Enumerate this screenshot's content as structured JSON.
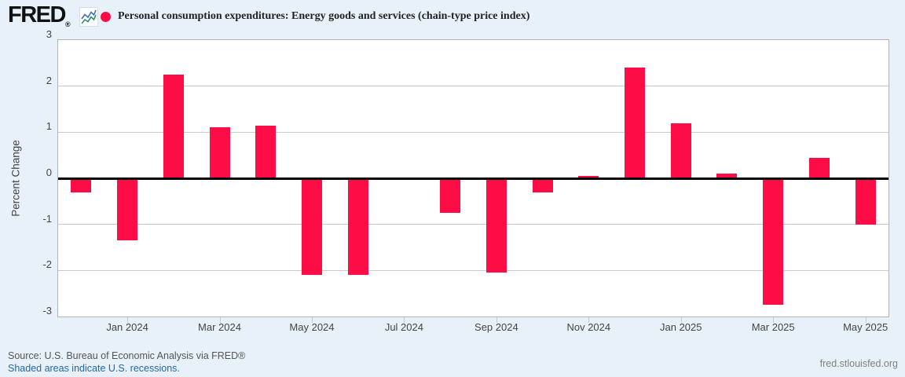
{
  "header": {
    "logo_text": "FRED",
    "logo_registered": "®",
    "sparkline_icon": "line-chart-sparkline",
    "series_title": "Personal consumption expenditures: Energy goods and services (chain-type price index)"
  },
  "footer": {
    "source_line": "Source: U.S. Bureau of Economic Analysis via FRED®",
    "recessions_note": "Shaded areas indicate U.S. recessions.",
    "site_link": "fred.stlouisfed.org"
  },
  "colors": {
    "series": "#fc0d45",
    "background": "#e8f1fa",
    "link": "#2268a8",
    "zero_line": "#000000",
    "gridline": "#c9c9c9"
  },
  "chart_data": {
    "type": "bar",
    "title": "Personal consumption expenditures: Energy goods and services (chain-type price index)",
    "xlabel": "",
    "ylabel": "Percent Change",
    "ylim": [
      -3,
      3
    ],
    "yticks": [
      3,
      2,
      1,
      0,
      -1,
      -2,
      -3
    ],
    "grid": true,
    "legend_position": "top",
    "categories": [
      "Dec 2023",
      "Jan 2024",
      "Feb 2024",
      "Mar 2024",
      "Apr 2024",
      "May 2024",
      "Jun 2024",
      "Jul 2024",
      "Aug 2024",
      "Sep 2024",
      "Oct 2024",
      "Nov 2024",
      "Dec 2024",
      "Jan 2025",
      "Feb 2025",
      "Mar 2025",
      "Apr 2025",
      "May 2025"
    ],
    "values": [
      -0.3,
      -1.35,
      2.25,
      1.1,
      1.15,
      -2.1,
      -2.1,
      0.0,
      -0.75,
      -2.05,
      -0.3,
      0.05,
      2.4,
      1.2,
      0.1,
      -2.75,
      0.45,
      -1.0
    ],
    "xticks": [
      [
        1,
        "Jan 2024"
      ],
      [
        3,
        "Mar 2024"
      ],
      [
        5,
        "May 2024"
      ],
      [
        7,
        "Jul 2024"
      ],
      [
        9,
        "Sep 2024"
      ],
      [
        11,
        "Nov 2024"
      ],
      [
        13,
        "Jan 2025"
      ],
      [
        15,
        "Mar 2025"
      ],
      [
        17,
        "May 2025"
      ]
    ]
  }
}
